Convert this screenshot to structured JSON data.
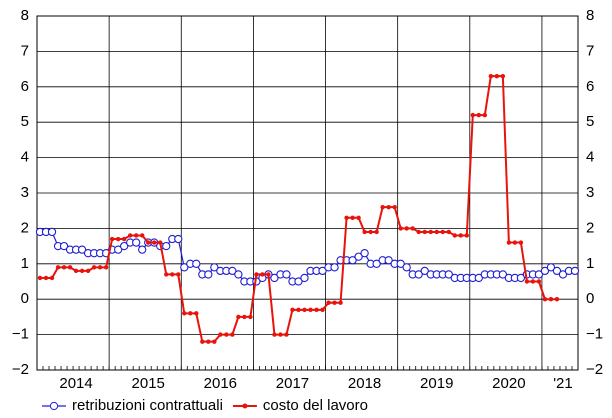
{
  "chart_data": {
    "type": "line",
    "categories": [
      null,
      null,
      null,
      null,
      null,
      null,
      "2014",
      null,
      null,
      null,
      null,
      null,
      null,
      null,
      null,
      null,
      null,
      null,
      "2015",
      null,
      null,
      null,
      null,
      null,
      null,
      null,
      null,
      null,
      null,
      null,
      "2016",
      null,
      null,
      null,
      null,
      null,
      null,
      null,
      null,
      null,
      null,
      null,
      "2017",
      null,
      null,
      null,
      null,
      null,
      null,
      null,
      null,
      null,
      null,
      null,
      "2018",
      null,
      null,
      null,
      null,
      null,
      null,
      null,
      null,
      null,
      null,
      null,
      "2019",
      null,
      null,
      null,
      null,
      null,
      null,
      null,
      null,
      null,
      null,
      null,
      "2020",
      null,
      null,
      null,
      null,
      null,
      null,
      null,
      null,
      "'21",
      null,
      null
    ],
    "series": [
      {
        "name": "retribuzioni contrattuali",
        "color": "#1f1fd0",
        "marker": "circle",
        "values": [
          1.9,
          1.9,
          1.9,
          1.5,
          1.5,
          1.4,
          1.4,
          1.4,
          1.3,
          1.3,
          1.3,
          1.3,
          1.4,
          1.4,
          1.5,
          1.6,
          1.6,
          1.4,
          1.6,
          1.6,
          1.5,
          1.5,
          1.7,
          1.7,
          0.9,
          1.0,
          1.0,
          0.7,
          0.7,
          0.9,
          0.8,
          0.8,
          0.8,
          0.7,
          0.5,
          0.5,
          0.5,
          0.6,
          0.7,
          0.6,
          0.7,
          0.7,
          0.5,
          0.5,
          0.6,
          0.8,
          0.8,
          0.8,
          0.9,
          0.9,
          1.1,
          1.1,
          1.1,
          1.2,
          1.3,
          1.0,
          1.0,
          1.1,
          1.1,
          1.0,
          1.0,
          0.9,
          0.7,
          0.7,
          0.8,
          0.7,
          0.7,
          0.7,
          0.7,
          0.6,
          0.6,
          0.6,
          0.6,
          0.6,
          0.7,
          0.7,
          0.7,
          0.7,
          0.6,
          0.6,
          0.6,
          0.7,
          0.7,
          0.7,
          0.8,
          0.9,
          0.8,
          0.7,
          0.8,
          0.8
        ]
      },
      {
        "name": "costo del lavoro",
        "color": "#e8140c",
        "marker": "dot",
        "values": [
          0.6,
          0.6,
          0.6,
          0.9,
          0.9,
          0.9,
          0.8,
          0.8,
          0.8,
          0.9,
          0.9,
          0.9,
          1.7,
          1.7,
          1.7,
          1.8,
          1.8,
          1.8,
          1.6,
          1.6,
          1.6,
          0.7,
          0.7,
          0.7,
          -0.4,
          -0.4,
          -0.4,
          -1.2,
          -1.2,
          -1.2,
          -1.0,
          -1.0,
          -1.0,
          -0.5,
          -0.5,
          -0.5,
          0.7,
          0.7,
          0.7,
          -1.0,
          -1.0,
          -1.0,
          -0.3,
          -0.3,
          -0.3,
          -0.3,
          -0.3,
          -0.3,
          -0.1,
          -0.1,
          -0.1,
          2.3,
          2.3,
          2.3,
          1.9,
          1.9,
          1.9,
          2.6,
          2.6,
          2.6,
          2.0,
          2.0,
          2.0,
          1.9,
          1.9,
          1.9,
          1.9,
          1.9,
          1.9,
          1.8,
          1.8,
          1.8,
          5.2,
          5.2,
          5.2,
          6.3,
          6.3,
          6.3,
          1.6,
          1.6,
          1.6,
          0.5,
          0.5,
          0.5,
          0.0,
          0.0,
          0.0,
          null,
          null,
          null
        ]
      }
    ],
    "ylim": [
      -2,
      8
    ],
    "yticks": [
      {
        "value": -2,
        "label": "−2"
      },
      {
        "value": -1,
        "label": "−1"
      },
      0,
      1,
      2,
      3,
      4,
      5,
      6,
      7,
      8
    ],
    "grid": true
  }
}
